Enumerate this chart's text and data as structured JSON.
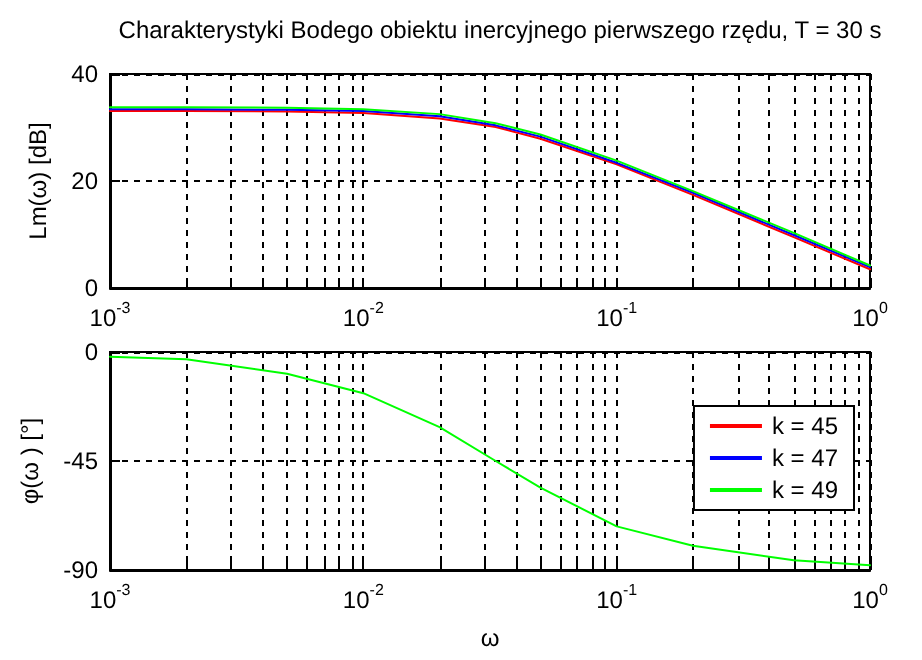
{
  "chart_data": [
    {
      "type": "line",
      "title": "Charakterystyki Bodego obiektu inercyjnego pierwszego rzędu, T = 30 s",
      "ylabel": "Lm(ω) [dB]",
      "log": "x",
      "grid": true,
      "line_style": "solid",
      "marker": "none",
      "x": [
        0.001,
        0.002,
        0.005,
        0.01,
        0.02,
        0.0333,
        0.05,
        0.1,
        0.2,
        0.5,
        1
      ],
      "series": [
        {
          "color": "#ff0000",
          "values": [
            33.1,
            33.1,
            33.0,
            32.7,
            31.7,
            30.1,
            27.9,
            23.1,
            17.4,
            9.5,
            3.5
          ]
        },
        {
          "color": "#0000ff",
          "values": [
            33.4,
            33.4,
            33.3,
            33.1,
            32.1,
            30.4,
            28.3,
            23.4,
            17.8,
            9.9,
            3.9
          ]
        },
        {
          "color": "#00ff00",
          "values": [
            33.8,
            33.8,
            33.7,
            33.4,
            32.5,
            30.8,
            28.7,
            23.8,
            18.1,
            10.3,
            4.2
          ]
        }
      ],
      "xlim": [
        0.001,
        1
      ],
      "xticks": [
        {
          "value": 0.001,
          "label": "10$^{-3}$"
        },
        {
          "value": 0.01,
          "label": "10$^{-2}$"
        },
        {
          "value": 0.1,
          "label": "10$^{-1}$"
        },
        {
          "value": 1,
          "label": "10$^{0}$"
        }
      ],
      "ylim": [
        0,
        40
      ],
      "yticks": [
        0,
        20,
        40
      ]
    },
    {
      "type": "line",
      "xlabel": "ω",
      "ylabel": "φ(ω ) [°]",
      "log": "x",
      "grid": true,
      "line_style": "solid",
      "marker": "none",
      "legend": "right",
      "x": [
        0.001,
        0.002,
        0.005,
        0.01,
        0.02,
        0.0333,
        0.05,
        0.1,
        0.2,
        0.5,
        1
      ],
      "series": [
        {
          "name": "k = 45",
          "color": "#ff0000",
          "values": [
            null,
            null,
            null,
            null,
            null,
            null,
            null,
            null,
            null,
            null,
            null
          ]
        },
        {
          "name": "k = 47",
          "color": "#0000ff",
          "values": [
            null,
            null,
            null,
            null,
            null,
            null,
            null,
            null,
            null,
            null,
            null
          ]
        },
        {
          "name": "k = 49",
          "color": "#00ff00",
          "values": [
            -2,
            -3,
            -9,
            -17,
            -31,
            -45,
            -56,
            -72,
            -80,
            -86,
            -88
          ]
        }
      ],
      "xlim": [
        0.001,
        1
      ],
      "xticks": [
        {
          "value": 0.001,
          "label": "10$^{-3}$"
        },
        {
          "value": 0.01,
          "label": "10$^{-2}$"
        },
        {
          "value": 0.1,
          "label": "10$^{-1}$"
        },
        {
          "value": 1,
          "label": "10$^{0}$"
        }
      ],
      "ylim": [
        -90,
        0
      ],
      "yticks": [
        -90,
        -45,
        0
      ]
    }
  ]
}
